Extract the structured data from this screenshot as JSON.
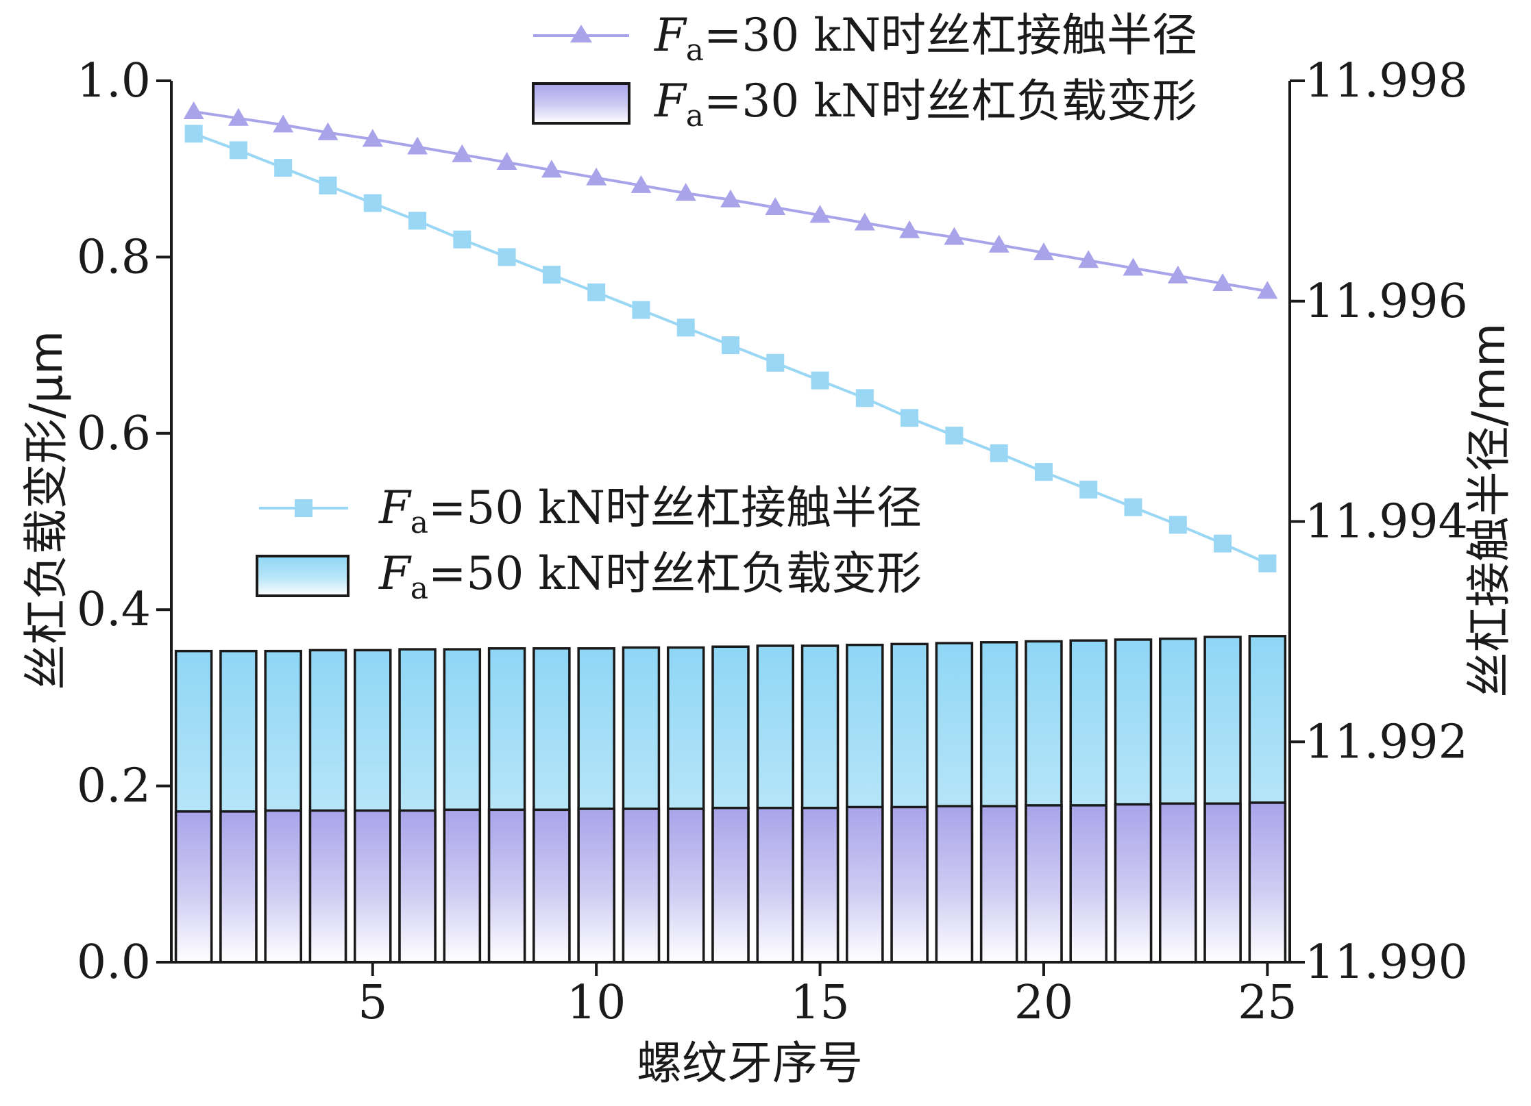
{
  "chart_data": {
    "type": "bar+line",
    "x_axis": {
      "label": "螺纹牙序号",
      "ticks": [
        5,
        10,
        15,
        20,
        25
      ],
      "range": [
        0.5,
        25.5
      ]
    },
    "y_left": {
      "label": "丝杠负载变形/μm",
      "range": [
        0.0,
        1.0
      ],
      "ticks": [
        "0.0",
        "0.2",
        "0.4",
        "0.6",
        "0.8",
        "1.0"
      ]
    },
    "y_right": {
      "label": "丝杠接触半径/mm",
      "range": [
        11.99,
        11.998
      ],
      "ticks": [
        "11.990",
        "11.992",
        "11.994",
        "11.996",
        "11.998"
      ]
    },
    "x": [
      1,
      2,
      3,
      4,
      5,
      6,
      7,
      8,
      9,
      10,
      11,
      12,
      13,
      14,
      15,
      16,
      17,
      18,
      19,
      20,
      21,
      22,
      23,
      24,
      25
    ],
    "bars": [
      {
        "name_base": "=50 kN时丝杠负载变形",
        "name_var": "F",
        "name_sub": "a",
        "color_top": "#8fd6f5",
        "color_bottom": "#ffffff",
        "values": [
          0.353,
          0.353,
          0.353,
          0.354,
          0.354,
          0.355,
          0.355,
          0.356,
          0.356,
          0.356,
          0.357,
          0.357,
          0.358,
          0.359,
          0.359,
          0.36,
          0.361,
          0.362,
          0.363,
          0.364,
          0.365,
          0.366,
          0.367,
          0.369,
          0.37
        ]
      },
      {
        "name_base": "=30 kN时丝杠负载变形",
        "name_var": "F",
        "name_sub": "a",
        "color_top": "#a9a4ea",
        "color_bottom": "#ffffff",
        "values": [
          0.171,
          0.171,
          0.172,
          0.172,
          0.172,
          0.172,
          0.173,
          0.173,
          0.173,
          0.174,
          0.174,
          0.174,
          0.175,
          0.175,
          0.175,
          0.176,
          0.176,
          0.177,
          0.177,
          0.178,
          0.178,
          0.179,
          0.18,
          0.18,
          0.181
        ]
      }
    ],
    "lines": [
      {
        "name_base": "=30 kN时丝杠接触半径",
        "name_var": "F",
        "name_sub": "a",
        "axis": "right",
        "marker": "triangle",
        "color": "#a9a4ea",
        "values": [
          11.99772,
          11.99766,
          11.9976,
          11.99753,
          11.99747,
          11.9974,
          11.99733,
          11.99726,
          11.99719,
          11.99712,
          11.99705,
          11.99698,
          11.99692,
          11.99685,
          11.99678,
          11.99671,
          11.99664,
          11.99658,
          11.99651,
          11.99644,
          11.99637,
          11.9963,
          11.99623,
          11.99616,
          11.99609
        ]
      },
      {
        "name_base": "=50 kN时丝杠接触半径",
        "name_var": "F",
        "name_sub": "a",
        "axis": "right",
        "marker": "square",
        "color": "#9ad7f5",
        "values": [
          11.99752,
          11.99737,
          11.99721,
          11.99705,
          11.99689,
          11.99673,
          11.99656,
          11.9964,
          11.99624,
          11.99608,
          11.99592,
          11.99576,
          11.9956,
          11.99544,
          11.99528,
          11.99512,
          11.99494,
          11.99478,
          11.99462,
          11.99445,
          11.99429,
          11.99413,
          11.99397,
          11.9938,
          11.99362
        ]
      }
    ]
  }
}
